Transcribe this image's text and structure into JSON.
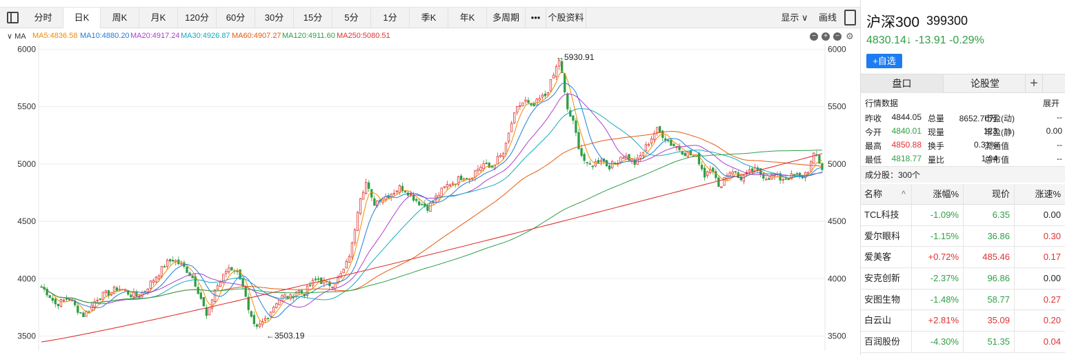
{
  "toolbar": {
    "periods": [
      {
        "label": "分时",
        "active": false
      },
      {
        "label": "日K",
        "active": true
      },
      {
        "label": "周K",
        "active": false
      },
      {
        "label": "月K",
        "active": false
      },
      {
        "label": "120分",
        "active": false
      },
      {
        "label": "60分",
        "active": false
      },
      {
        "label": "30分",
        "active": false
      },
      {
        "label": "15分",
        "active": false
      },
      {
        "label": "5分",
        "active": false
      },
      {
        "label": "1分",
        "active": false
      },
      {
        "label": "季K",
        "active": false
      },
      {
        "label": "年K",
        "active": false
      },
      {
        "label": "多周期",
        "active": false
      },
      {
        "label": "•••",
        "active": false
      },
      {
        "label": "个股资料",
        "active": false
      }
    ],
    "display_label": "显示 ∨",
    "draw_label": "画线"
  },
  "ma_legend": {
    "toggle": "∨ MA",
    "items": [
      {
        "text": "MA5:4836.58",
        "color": "#f08c00"
      },
      {
        "text": "MA10:4880.20",
        "color": "#1c7ed6"
      },
      {
        "text": "MA20:4917.24",
        "color": "#ae3ec9"
      },
      {
        "text": "MA30:4926.87",
        "color": "#15aabf"
      },
      {
        "text": "MA60:4907.27",
        "color": "#e8590c"
      },
      {
        "text": "MA120:4911.60",
        "color": "#2f9e44"
      },
      {
        "text": "MA250:5080.51",
        "color": "#e03131"
      }
    ]
  },
  "chart_data": {
    "type": "candlestick",
    "ylim": [
      3450,
      6020
    ],
    "yticks": [
      "6000",
      "5500",
      "5000",
      "4500",
      "4000",
      "3500"
    ],
    "annotations": [
      {
        "text": "←5930.91",
        "value": 5930.91
      },
      {
        "text": "←3503.19",
        "value": 3503.19
      }
    ],
    "close_path": [
      3930,
      3870,
      3780,
      3800,
      3840,
      3750,
      3680,
      3740,
      3830,
      3860,
      3880,
      3920,
      3900,
      3860,
      3850,
      3900,
      3980,
      4050,
      4130,
      4170,
      4130,
      4080,
      4000,
      3850,
      3650,
      3900,
      3980,
      4100,
      4080,
      4000,
      3700,
      3550,
      3620,
      3700,
      3800,
      3850,
      3830,
      3900,
      3870,
      3950,
      4000,
      3960,
      3950,
      4000,
      4100,
      4300,
      4700,
      4840,
      4650,
      4700,
      4720,
      4760,
      4800,
      4760,
      4700,
      4650,
      4620,
      4700,
      4770,
      4830,
      4850,
      4900,
      4880,
      4950,
      5000,
      4960,
      5040,
      5100,
      5350,
      5500,
      5550,
      5480,
      5560,
      5600,
      5750,
      5920,
      5500,
      5350,
      5100,
      4980,
      5000,
      5050,
      4980,
      5000,
      5080,
      5050,
      5000,
      5100,
      5200,
      5300,
      5250,
      5180,
      5150,
      5100,
      5080,
      5050,
      4900,
      5000,
      4780,
      4900,
      4950,
      4870,
      4900,
      4950,
      4920,
      4880,
      4900,
      4870,
      4880,
      4900,
      4880,
      4950,
      5100,
      4960
    ]
  },
  "instrument": {
    "name": "沪深300",
    "code": "399300",
    "quote": "4830.14↓ -13.91 -0.29%",
    "add_watch": "+自选"
  },
  "tabs": {
    "pankou": "盘口",
    "lungutang": "论股堂",
    "plus": "+"
  },
  "market_data": {
    "title": "行情数据",
    "expand": "展开",
    "rows": [
      [
        {
          "k": "昨收"
        },
        {
          "v": "4844.05",
          "c": ""
        },
        {
          "k": "总量"
        },
        {
          "v": "8652.70万",
          "c": ""
        },
        {
          "k": "市盈(动)"
        },
        {
          "v": "--",
          "c": ""
        }
      ],
      [
        {
          "k": "今开"
        },
        {
          "v": "4840.01",
          "c": "down"
        },
        {
          "k": "现量"
        },
        {
          "v": "123",
          "c": ""
        },
        {
          "k": "市盈(静)"
        },
        {
          "v": "0.00",
          "c": ""
        }
      ],
      [
        {
          "k": "最高"
        },
        {
          "v": "4850.88",
          "c": "up"
        },
        {
          "k": "换手"
        },
        {
          "v": "0.31%",
          "c": ""
        },
        {
          "k": "流通值"
        },
        {
          "v": "--",
          "c": ""
        }
      ],
      [
        {
          "k": "最低"
        },
        {
          "v": "4818.77",
          "c": "down"
        },
        {
          "k": "量比"
        },
        {
          "v": "1.04",
          "c": ""
        },
        {
          "k": "总市值"
        },
        {
          "v": "--",
          "c": ""
        }
      ]
    ]
  },
  "constituents": {
    "title": "成分股：300个",
    "headers": [
      "名称",
      "^",
      "涨幅%",
      "现价",
      "涨速%"
    ],
    "rows": [
      {
        "name": "TCL科技",
        "chg": "-1.09%",
        "price": "6.35",
        "speed": "0.00",
        "dir": "down",
        "sdir": ""
      },
      {
        "name": "爱尔眼科",
        "chg": "-1.15%",
        "price": "36.86",
        "speed": "0.30",
        "dir": "down",
        "sdir": "up"
      },
      {
        "name": "爱美客",
        "chg": "+0.72%",
        "price": "485.46",
        "speed": "0.17",
        "dir": "up",
        "sdir": "up"
      },
      {
        "name": "安克创新",
        "chg": "-2.37%",
        "price": "96.86",
        "speed": "0.00",
        "dir": "down",
        "sdir": ""
      },
      {
        "name": "安图生物",
        "chg": "-1.48%",
        "price": "58.77",
        "speed": "0.27",
        "dir": "down",
        "sdir": "up"
      },
      {
        "name": "白云山",
        "chg": "+2.81%",
        "price": "35.09",
        "speed": "0.20",
        "dir": "up",
        "sdir": "up"
      },
      {
        "name": "百润股份",
        "chg": "-4.30%",
        "price": "51.35",
        "speed": "0.04",
        "dir": "down",
        "sdir": "up"
      }
    ]
  }
}
